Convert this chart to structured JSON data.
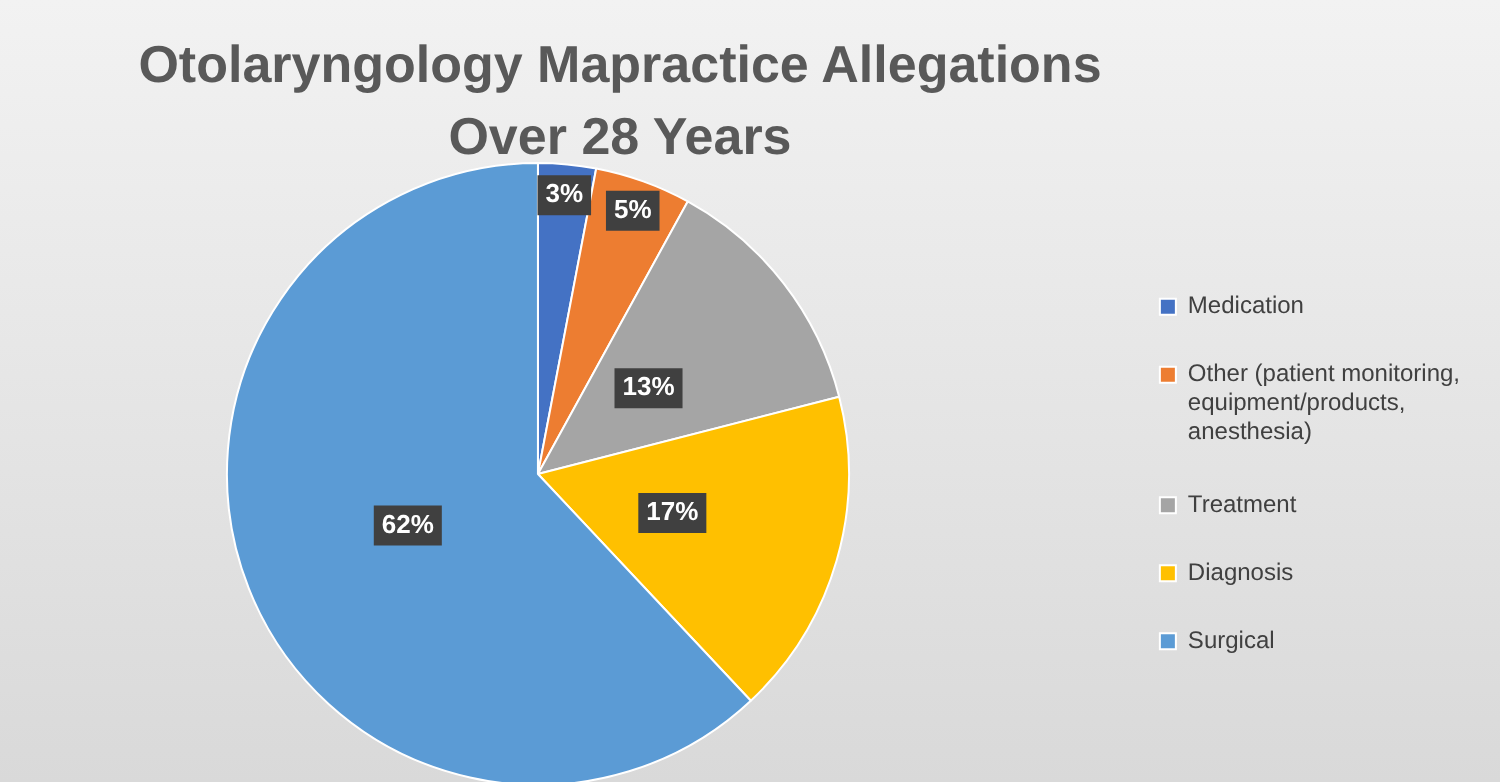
{
  "chart_data": {
    "type": "pie",
    "title": "Otolaryngology Mapractice Allegations Over 28 Years",
    "categories": [
      "Medication",
      "Other (patient monitoring, equipment/products, anesthesia)",
      "Treatment",
      "Diagnosis",
      "Surgical"
    ],
    "values": [
      3,
      5,
      13,
      17,
      62
    ],
    "colors": [
      "#4472c4",
      "#ed7d31",
      "#a5a5a5",
      "#ffc000",
      "#5b9bd5"
    ],
    "value_labels": [
      "3%",
      "5%",
      "13%",
      "17%",
      "62%"
    ],
    "legend": "right"
  }
}
